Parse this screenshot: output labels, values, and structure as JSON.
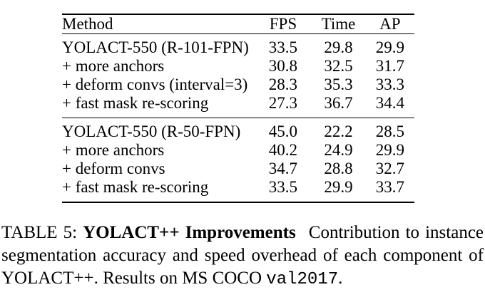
{
  "page": {
    "background": "#ffffff",
    "text_color": "#000000",
    "rule_color": "#000000"
  },
  "table": {
    "headers": {
      "method": "Method",
      "fps": "FPS",
      "time": "Time",
      "ap": "AP"
    },
    "groups": [
      {
        "rows": [
          {
            "method": "YOLACT-550 (R-101-FPN)",
            "fps": "33.5",
            "time": "29.8",
            "ap": "29.9",
            "bold": {
              "fps": true,
              "time": true
            }
          },
          {
            "method": "+ more anchors",
            "fps": "30.8",
            "time": "32.5",
            "ap": "31.7",
            "bold": {}
          },
          {
            "method": "+ deform convs (interval=3)",
            "fps": "28.3",
            "time": "35.3",
            "ap": "33.3",
            "bold": {}
          },
          {
            "method": "+ fast mask re-scoring",
            "fps": "27.3",
            "time": "36.7",
            "ap": "34.4",
            "bold": {
              "ap": true
            }
          }
        ]
      },
      {
        "rows": [
          {
            "method": "YOLACT-550 (R-50-FPN)",
            "fps": "45.0",
            "time": "22.2",
            "ap": "28.5",
            "bold": {
              "fps": true,
              "time": true
            }
          },
          {
            "method": "+ more anchors",
            "fps": "40.2",
            "time": "24.9",
            "ap": "29.9",
            "bold": {}
          },
          {
            "method": "+ deform convs",
            "fps": "34.7",
            "time": "28.8",
            "ap": "32.7",
            "bold": {}
          },
          {
            "method": "+ fast mask re-scoring",
            "fps": "33.5",
            "time": "29.9",
            "ap": "33.7",
            "bold": {
              "ap": true
            }
          }
        ]
      }
    ]
  },
  "caption": {
    "line1": {
      "label": "TABLE 5:",
      "title": "YOLACT++ Improvements",
      "rest": "Contribution to instance"
    },
    "line2": "segmentation accuracy and speed overhead of each component of",
    "line3": {
      "pre": "YOLACT++. Results on MS COCO",
      "code": "val2017",
      "suffix": "."
    }
  }
}
